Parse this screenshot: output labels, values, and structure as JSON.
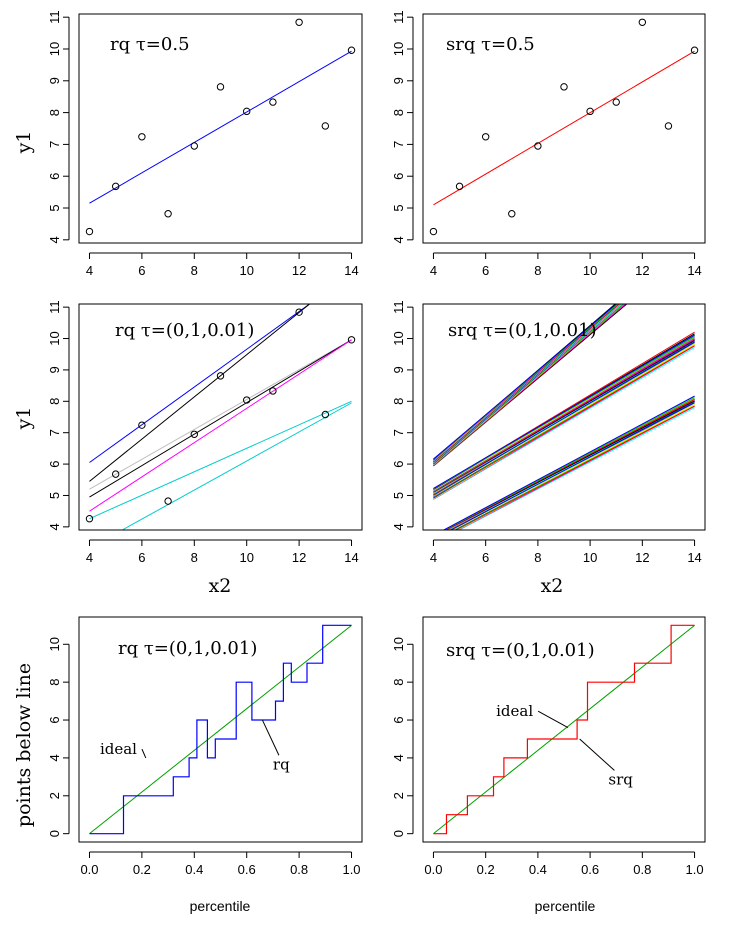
{
  "chart_data": [
    {
      "id": "p1",
      "type": "scatter",
      "title": "rq τ=0.5",
      "xlabel": "",
      "ylabel": "y1",
      "xlim": [
        3.6,
        14.4
      ],
      "ylim": [
        3.9,
        11.1
      ],
      "xticks": [
        4,
        6,
        8,
        10,
        12,
        14
      ],
      "yticks": [
        4,
        5,
        6,
        7,
        8,
        9,
        10,
        11
      ],
      "points": {
        "x": [
          4,
          5,
          6,
          7,
          8,
          9,
          10,
          11,
          12,
          13,
          14
        ],
        "y": [
          4.26,
          5.68,
          7.24,
          4.82,
          6.95,
          8.81,
          8.04,
          8.33,
          10.84,
          7.58,
          9.96
        ]
      },
      "lines": [
        {
          "color": "#0000ff",
          "x": [
            4,
            14
          ],
          "y": [
            5.15,
            9.93
          ]
        }
      ]
    },
    {
      "id": "p2",
      "type": "scatter",
      "title": "srq τ=0.5",
      "xlabel": "",
      "ylabel": "",
      "xlim": [
        3.6,
        14.4
      ],
      "ylim": [
        3.9,
        11.1
      ],
      "xticks": [
        4,
        6,
        8,
        10,
        12,
        14
      ],
      "yticks": [
        4,
        5,
        6,
        7,
        8,
        9,
        10,
        11
      ],
      "points": {
        "x": [
          4,
          5,
          6,
          7,
          8,
          9,
          10,
          11,
          12,
          13,
          14
        ],
        "y": [
          4.26,
          5.68,
          7.24,
          4.82,
          6.95,
          8.81,
          8.04,
          8.33,
          10.84,
          7.58,
          9.96
        ]
      },
      "lines": [
        {
          "color": "#ff0000",
          "x": [
            4,
            14
          ],
          "y": [
            5.1,
            9.93
          ]
        }
      ]
    },
    {
      "id": "p3",
      "type": "scatter",
      "title": "rq τ=(0,1,0.01)",
      "xlabel": "x2",
      "ylabel": "y1",
      "xlim": [
        3.6,
        14.4
      ],
      "ylim": [
        3.9,
        11.1
      ],
      "xticks": [
        4,
        6,
        8,
        10,
        12,
        14
      ],
      "yticks": [
        4,
        5,
        6,
        7,
        8,
        9,
        10,
        11
      ],
      "points": {
        "x": [
          4,
          5,
          6,
          7,
          8,
          9,
          10,
          11,
          12,
          13,
          14
        ],
        "y": [
          4.26,
          5.68,
          7.24,
          4.82,
          6.95,
          8.81,
          8.04,
          8.33,
          10.84,
          7.58,
          9.96
        ]
      },
      "lines": [
        {
          "color": "#0000ff",
          "x": [
            4,
            12.4
          ],
          "y": [
            6.05,
            11.1
          ]
        },
        {
          "color": "#000000",
          "x": [
            4,
            12.4
          ],
          "y": [
            5.45,
            11.1
          ]
        },
        {
          "color": "#bebebe",
          "x": [
            4,
            14
          ],
          "y": [
            5.2,
            9.96
          ]
        },
        {
          "color": "#000000",
          "x": [
            4,
            14
          ],
          "y": [
            4.95,
            9.96
          ]
        },
        {
          "color": "#ff00ff",
          "x": [
            4,
            14
          ],
          "y": [
            4.5,
            9.96
          ]
        },
        {
          "color": "#00cccc",
          "x": [
            4,
            14
          ],
          "y": [
            4.26,
            8.0
          ]
        },
        {
          "color": "#00cccc",
          "x": [
            5.25,
            14
          ],
          "y": [
            3.9,
            7.95
          ]
        }
      ]
    },
    {
      "id": "p4",
      "type": "line",
      "title": "srq τ=(0,1,0.01)",
      "xlabel": "x2",
      "ylabel": "",
      "xlim": [
        3.6,
        14.4
      ],
      "ylim": [
        3.9,
        11.1
      ],
      "xticks": [
        4,
        6,
        8,
        10,
        12,
        14
      ],
      "yticks": [
        4,
        5,
        6,
        7,
        8,
        9,
        10,
        11
      ],
      "bundles": [
        {
          "x0": 4,
          "x1": 14,
          "y0": 6.05,
          "slope": 0.705,
          "spread": 0.22,
          "count": 28
        },
        {
          "x0": 4,
          "x1": 14,
          "y0": 5.05,
          "slope": 0.492,
          "spread": 0.35,
          "count": 32
        },
        {
          "x0": 4,
          "x1": 14,
          "y0": 3.6,
          "slope": 0.44,
          "spread": 0.25,
          "count": 24
        }
      ],
      "palette": [
        "#000000",
        "#ff0000",
        "#00cd00",
        "#0000ff",
        "#00ffff",
        "#ff00ff",
        "#ffff00",
        "#bebebe"
      ]
    },
    {
      "id": "p5",
      "type": "line",
      "title": "rq τ=(0,1,0.01)",
      "xlabel": "percentile",
      "ylabel": "points below line",
      "xlim": [
        -0.04,
        1.04
      ],
      "ylim": [
        -0.44,
        11.44
      ],
      "xticks": [
        0.0,
        0.2,
        0.4,
        0.6,
        0.8,
        1.0
      ],
      "yticks": [
        0,
        2,
        4,
        6,
        8,
        10
      ],
      "ideal": {
        "x": [
          0,
          1
        ],
        "y": [
          0,
          11
        ]
      },
      "step": {
        "color": "#0000ff",
        "x": [
          0,
          0.13,
          0.13,
          0.32,
          0.32,
          0.38,
          0.38,
          0.41,
          0.41,
          0.45,
          0.45,
          0.48,
          0.48,
          0.56,
          0.56,
          0.62,
          0.62,
          0.71,
          0.71,
          0.74,
          0.74,
          0.77,
          0.77,
          0.83,
          0.83,
          0.89,
          0.89,
          1
        ],
        "y": [
          0,
          0,
          2,
          2,
          3,
          3,
          4,
          4,
          6,
          6,
          4,
          4,
          5,
          5,
          8,
          8,
          6,
          6,
          7,
          7,
          9,
          9,
          8,
          8,
          9,
          9,
          11,
          11
        ]
      },
      "labels": [
        {
          "text": "ideal",
          "x": 0.04,
          "y": 4.2,
          "to_x": 0.215,
          "to_y": 4.0
        },
        {
          "text": "rq",
          "x": 0.7,
          "y": 3.4,
          "to_x": 0.66,
          "to_y": 6.0
        }
      ]
    },
    {
      "id": "p6",
      "type": "line",
      "title": "srq   τ=(0,1,0.01)",
      "xlabel": "percentile",
      "ylabel": "",
      "xlim": [
        -0.04,
        1.04
      ],
      "ylim": [
        -0.44,
        11.44
      ],
      "xticks": [
        0.0,
        0.2,
        0.4,
        0.6,
        0.8,
        1.0
      ],
      "yticks": [
        0,
        2,
        4,
        6,
        8,
        10
      ],
      "ideal": {
        "x": [
          0,
          1
        ],
        "y": [
          0,
          11
        ]
      },
      "step": {
        "color": "#ff0000",
        "x": [
          0,
          0.05,
          0.05,
          0.09,
          0.09,
          0.13,
          0.13,
          0.18,
          0.18,
          0.23,
          0.23,
          0.27,
          0.27,
          0.36,
          0.36,
          0.45,
          0.45,
          0.55,
          0.55,
          0.59,
          0.59,
          0.64,
          0.64,
          0.73,
          0.73,
          0.77,
          0.77,
          0.82,
          0.82,
          0.91,
          0.91,
          1
        ],
        "y": [
          0,
          0,
          1,
          1,
          1,
          1,
          2,
          2,
          2,
          2,
          3,
          3,
          4,
          4,
          5,
          5,
          5,
          5,
          6,
          6,
          8,
          8,
          8,
          8,
          8,
          8,
          9,
          9,
          9,
          9,
          11,
          11
        ]
      },
      "labels": [
        {
          "text": "ideal",
          "x": 0.24,
          "y": 6.2,
          "to_x": 0.515,
          "to_y": 5.6
        },
        {
          "text": "srq",
          "x": 0.67,
          "y": 2.6,
          "to_x": 0.56,
          "to_y": 5.0
        }
      ]
    }
  ]
}
